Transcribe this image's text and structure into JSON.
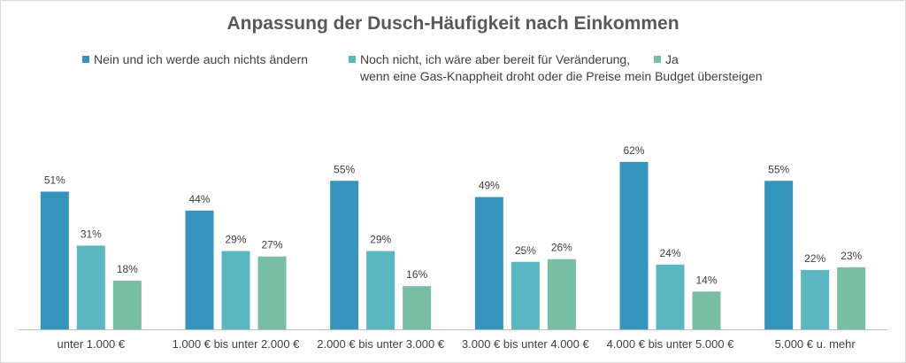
{
  "chart_data": {
    "type": "bar",
    "title": "Anpassung der Dusch-Häufigkeit nach Einkommen",
    "xlabel": "",
    "ylabel": "",
    "ylim": [
      0,
      70
    ],
    "grid": false,
    "legend_position": "top",
    "categories": [
      "unter 1.000 €",
      "1.000 € bis unter 2.000 €",
      "2.000 € bis unter 3.000 €",
      "3.000 € bis unter 4.000 €",
      "4.000 € bis unter 5.000 €",
      "5.000 € u. mehr"
    ],
    "series": [
      {
        "name": "Nein und ich werde auch nichts ändern",
        "values": [
          51,
          44,
          55,
          49,
          62,
          55
        ],
        "color": "#3494bb"
      },
      {
        "name_lines": [
          "Noch nicht, ich wäre aber bereit für Veränderung,",
          "wenn eine Gas-Knappheit droht oder die Preise mein Budget übersteigen"
        ],
        "values": [
          31,
          29,
          29,
          25,
          24,
          22
        ],
        "color": "#5ab7c1"
      },
      {
        "name": "Ja",
        "values": [
          18,
          27,
          16,
          26,
          14,
          23
        ],
        "color": "#78bea4"
      }
    ],
    "value_suffix": "%"
  }
}
